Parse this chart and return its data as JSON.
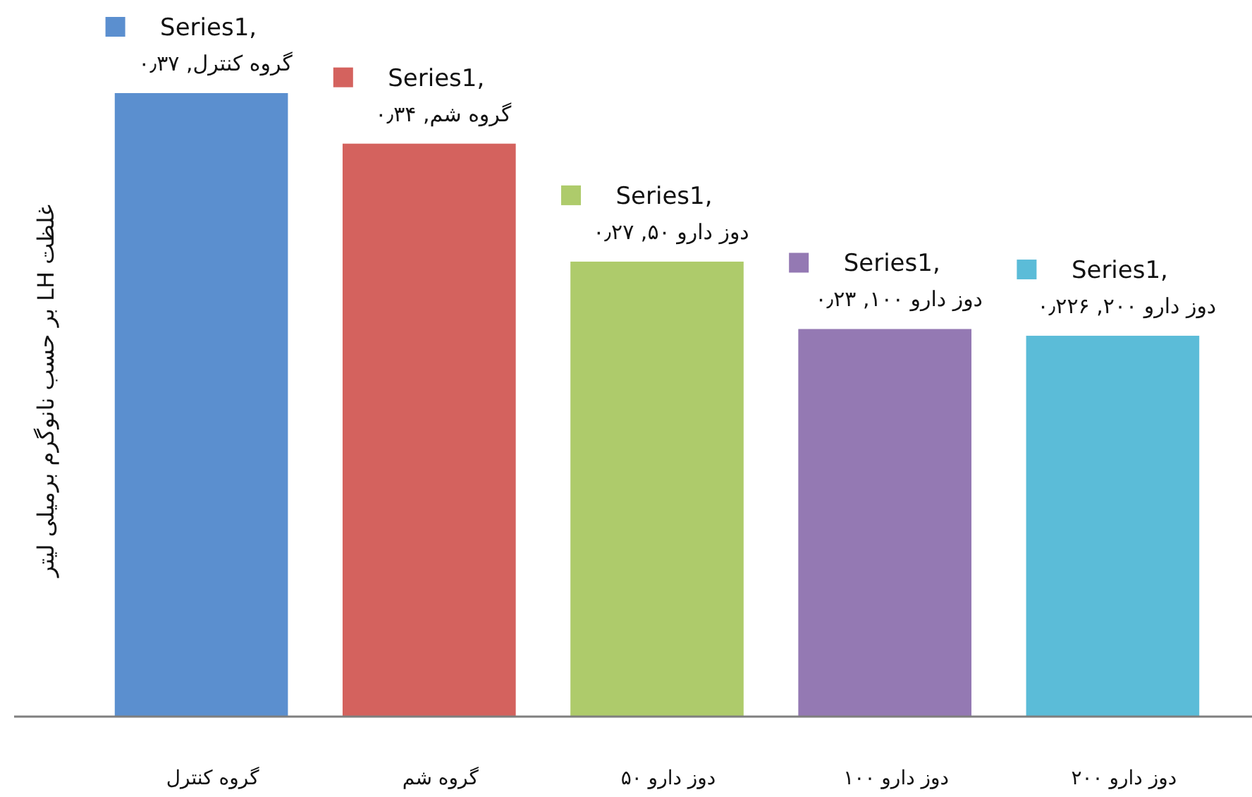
{
  "chart_data": {
    "type": "bar",
    "ylabel": "غلظت LH بر حسب نانوگرم برمیلی لیتر",
    "categories": [
      "گروه کنترل",
      "گروه شم",
      "دوز دارو ۵۰",
      "دوز دارو ۱۰۰",
      "دوز دارو ۲۰۰"
    ],
    "values": [
      0.37,
      0.34,
      0.27,
      0.23,
      0.226
    ],
    "colors": [
      "#5b8fcf",
      "#d4625e",
      "#aecb6b",
      "#9479b3",
      "#5bbcd8"
    ],
    "value_labels": [
      "Series1, گروه کنترل, ۰٫۳۷",
      "Series1, گروه شم, ۰٫۳۴",
      "Series1, دوز دارو ۵۰, ۰٫۲۷",
      "Series1, دوز دارو ۱۰۰, ۰٫۲۳",
      "Series1, دوز دارو ۲۰۰, ۰٫۲۲۶"
    ]
  }
}
